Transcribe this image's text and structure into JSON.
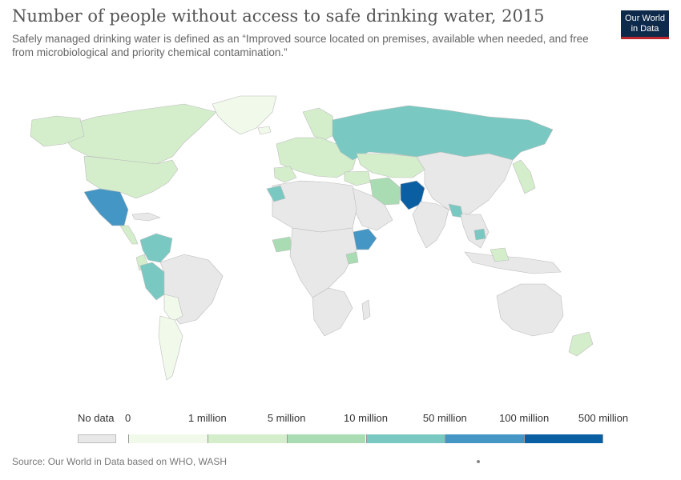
{
  "header": {
    "title": "Number of people without access to safe drinking water, 2015",
    "subtitle": "Safely managed drinking water is defined as an “Improved source located on premises, available when needed, and free from microbiological and priority chemical contamination.”"
  },
  "logo": {
    "line1": "Our World",
    "line2": "in Data"
  },
  "colors": {
    "no_data": "#e8e8e8",
    "border": "#bcbcbc",
    "bins": [
      "#f1faea",
      "#d4eecb",
      "#a9dcb2",
      "#79c9c2",
      "#4496c4",
      "#0a5fa3"
    ]
  },
  "legend": {
    "no_data_label": "No data",
    "tick_labels": [
      "0",
      "1 million",
      "5 million",
      "10 million",
      "50 million",
      "100 million",
      "500 million"
    ]
  },
  "footer": {
    "source": "Source: Our World in Data based on WHO, WASH"
  }
}
